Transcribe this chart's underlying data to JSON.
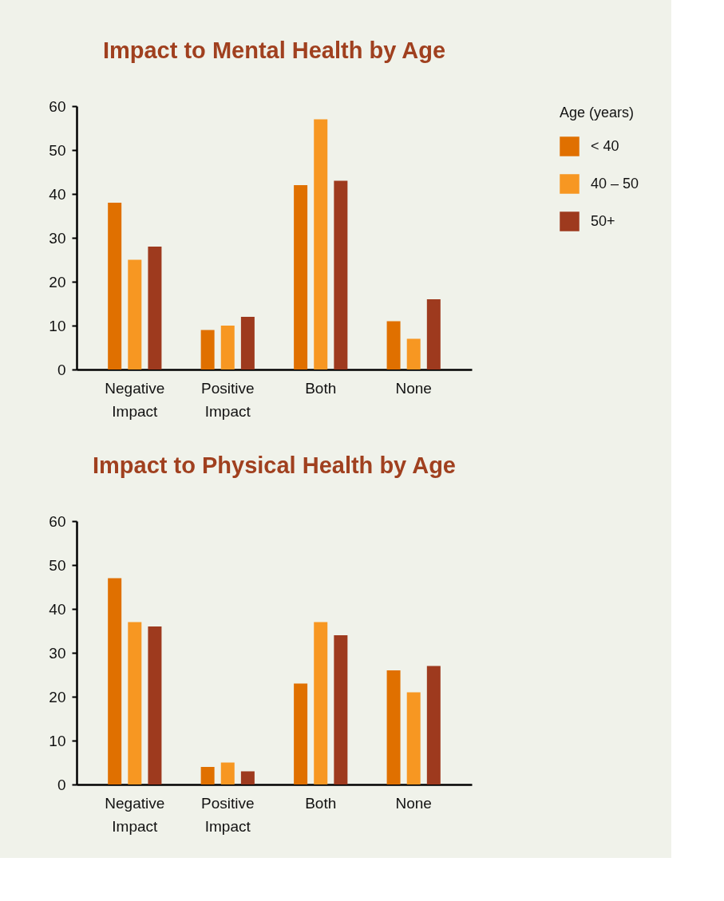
{
  "chart_data": [
    {
      "type": "bar",
      "title": "Impact to Mental Health by Age",
      "legend_title": "Age (years)",
      "legend": "right",
      "grid": false,
      "categories": [
        "Negative Impact",
        "Positive Impact",
        "Both",
        "None"
      ],
      "ylim": [
        0,
        60
      ],
      "yticks": [
        0,
        10,
        20,
        30,
        40,
        50,
        60
      ],
      "series": [
        {
          "name": "< 40",
          "color": "#e07000",
          "values": [
            38,
            9,
            42,
            11
          ]
        },
        {
          "name": "40 – 50",
          "color": "#f79722",
          "values": [
            25,
            10,
            57,
            7
          ]
        },
        {
          "name": "50+",
          "color": "#9e3a1e",
          "values": [
            28,
            12,
            43,
            16
          ]
        }
      ]
    },
    {
      "type": "bar",
      "title": "Impact to Physical Health by Age",
      "legend": false,
      "grid": false,
      "categories": [
        "Negative Impact",
        "Positive Impact",
        "Both",
        "None"
      ],
      "ylim": [
        0,
        60
      ],
      "yticks": [
        0,
        10,
        20,
        30,
        40,
        50,
        60
      ],
      "series": [
        {
          "color": "#e07000",
          "values": [
            47,
            4,
            23,
            26
          ]
        },
        {
          "color": "#f79722",
          "values": [
            37,
            5,
            37,
            21
          ]
        },
        {
          "color": "#9e3a1e",
          "values": [
            36,
            3,
            34,
            27
          ]
        }
      ]
    }
  ]
}
